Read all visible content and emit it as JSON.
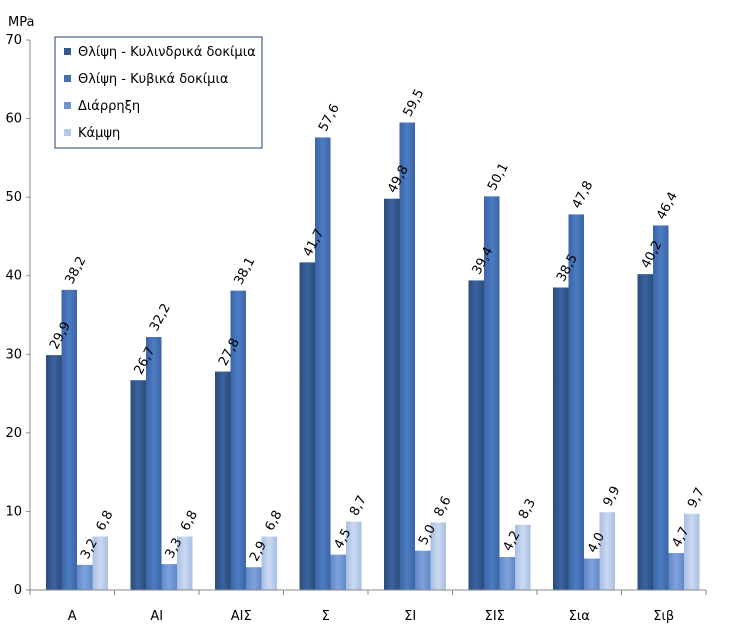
{
  "chart_data": {
    "type": "bar",
    "unit_label": "MPa",
    "categories": [
      "Α",
      "ΑΙ",
      "ΑΙΣ",
      "Σ",
      "ΣΙ",
      "ΣΙΣ",
      "Σια",
      "Σιβ"
    ],
    "ylim": [
      0,
      70
    ],
    "yticks": [
      0,
      10,
      20,
      30,
      40,
      50,
      60,
      70
    ],
    "legend_position": "top-left",
    "grid": false,
    "series": [
      {
        "name": "Θλίψη - Κυλινδρικά δοκίμια",
        "color": "#34598c",
        "values": [
          29.9,
          26.7,
          27.8,
          41.7,
          49.8,
          39.4,
          38.5,
          40.2
        ],
        "labels": [
          "29,9",
          "26,7",
          "27,8",
          "41,7",
          "49,8",
          "39,4",
          "38,5",
          "40,2"
        ]
      },
      {
        "name": "Θλίψη - Κυβικά δοκίμια",
        "color": "#4370b0",
        "values": [
          38.2,
          32.2,
          38.1,
          57.6,
          59.5,
          50.1,
          47.8,
          46.4
        ],
        "labels": [
          "38,2",
          "32,2",
          "38,1",
          "57,6",
          "59,5",
          "50,1",
          "47,8",
          "46,4"
        ]
      },
      {
        "name": "Διάρρηξη",
        "color": "#6d93d0",
        "values": [
          3.2,
          3.3,
          2.9,
          4.5,
          5.0,
          4.2,
          4.0,
          4.7
        ],
        "labels": [
          "3,2",
          "3,3",
          "2,9",
          "4,5",
          "5,0",
          "4,2",
          "4,0",
          "4,7"
        ]
      },
      {
        "name": "Κάμψη",
        "color": "#b3c7e8",
        "values": [
          6.8,
          6.8,
          6.8,
          8.7,
          8.6,
          8.3,
          9.9,
          9.7
        ],
        "labels": [
          "6,8",
          "6,8",
          "6,8",
          "8,7",
          "8,6",
          "8,3",
          "9,9",
          "9,7"
        ]
      }
    ]
  }
}
